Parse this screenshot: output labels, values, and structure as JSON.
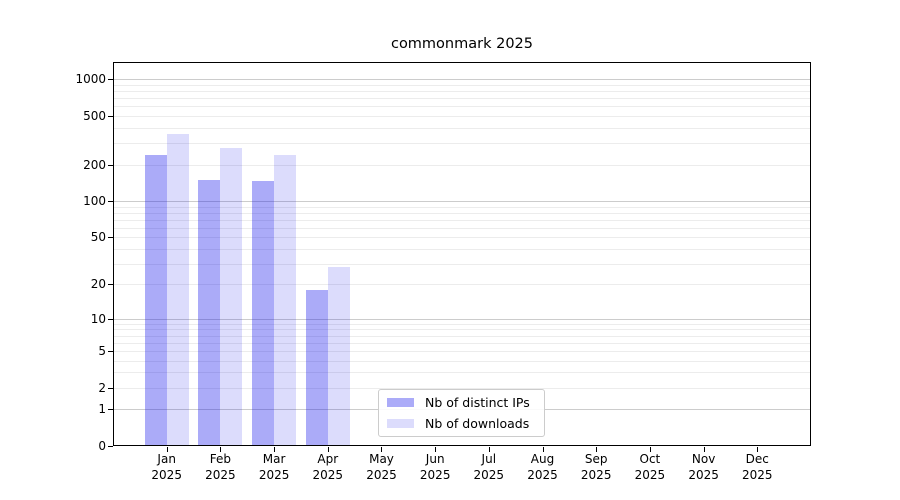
{
  "figure": {
    "title": "commonmark 2025"
  },
  "chart_data": {
    "type": "bar",
    "title": "commonmark 2025",
    "categories": [
      "Jan 2025",
      "Feb 2025",
      "Mar 2025",
      "Apr 2025",
      "May 2025",
      "Jun 2025",
      "Jul 2025",
      "Aug 2025",
      "Sep 2025",
      "Oct 2025",
      "Nov 2025",
      "Dec 2025"
    ],
    "series": [
      {
        "name": "Nb of distinct IPs",
        "key": "distinct-ips",
        "color": "rgba(13,13,234,0.35)",
        "values": [
          238,
          149,
          146,
          18,
          0,
          0,
          0,
          0,
          0,
          0,
          0,
          0
        ]
      },
      {
        "name": "Nb of downloads",
        "key": "downloads",
        "color": "rgba(13,13,234,0.145)",
        "values": [
          360,
          273,
          240,
          28,
          0,
          0,
          0,
          0,
          0,
          0,
          0,
          0
        ]
      }
    ],
    "xlabel": "",
    "ylabel": "",
    "y_axis": {
      "scale": "log10(value+1)",
      "tick_values": [
        0,
        1,
        2,
        5,
        10,
        20,
        50,
        100,
        200,
        500,
        1000
      ],
      "ylim": [
        0,
        1387
      ],
      "grid": true
    },
    "legend": {
      "position": "lower-center-inside"
    },
    "colors": {
      "grid_minor": "#ececec",
      "grid_major": "#cccccc",
      "axis": "#000000",
      "text": "#000000"
    }
  }
}
